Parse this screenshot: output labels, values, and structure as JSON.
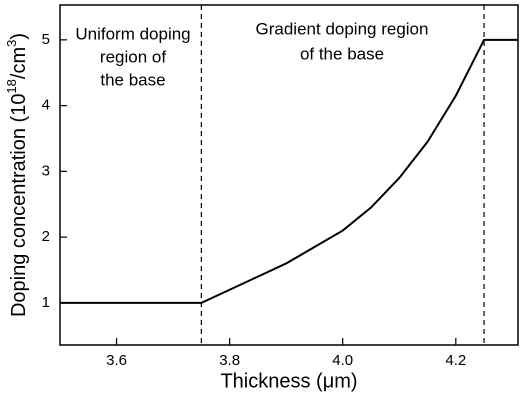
{
  "chart_data": {
    "type": "line",
    "x_label": "Thickness (μm)",
    "y_label": [
      "Doping concentration (10",
      "18",
      "/cm",
      "3",
      ")"
    ],
    "annotations": [
      [
        "Uniform doping",
        "region of",
        "the base"
      ],
      [
        "Gradient doping region",
        "of the base"
      ]
    ],
    "vlines": [
      3.75,
      4.25
    ],
    "x": [
      3.5,
      3.75,
      3.8,
      3.85,
      3.9,
      3.95,
      4.0,
      4.05,
      4.1,
      4.15,
      4.2,
      4.25,
      4.31
    ],
    "series": [
      {
        "color": "#000000",
        "values": [
          1,
          1,
          1.2,
          1.4,
          1.6,
          1.85,
          2.1,
          2.45,
          2.9,
          3.45,
          4.15,
          5,
          5
        ]
      }
    ],
    "xlim": [
      3.5,
      4.31
    ],
    "xticks": [
      3.6,
      3.8,
      {
        "value": 4,
        "label": "4.0"
      },
      4.2
    ],
    "ylim": [
      0.36,
      5.53
    ],
    "yticks": [
      1,
      2,
      3,
      4,
      5
    ]
  }
}
